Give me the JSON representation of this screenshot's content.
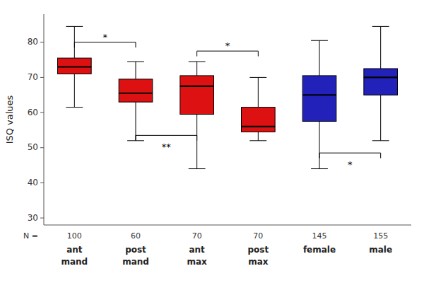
{
  "chart_data": {
    "type": "box",
    "ylabel": "ISQ values",
    "categories": [
      [
        "ant",
        "mand"
      ],
      [
        "post",
        "mand"
      ],
      [
        "ant",
        "max"
      ],
      [
        "post",
        "max"
      ],
      [
        "female"
      ],
      [
        "male"
      ]
    ],
    "n_label": "N =",
    "n": [
      100,
      60,
      70,
      70,
      145,
      155
    ],
    "colors": [
      "#dd1111",
      "#dd1111",
      "#dd1111",
      "#dd1111",
      "#2222bb",
      "#2222bb"
    ],
    "whisker_low": [
      61.5,
      52.0,
      44.0,
      52.0,
      44.0,
      52.0
    ],
    "q1": [
      71.0,
      63.0,
      59.5,
      54.5,
      57.5,
      65.0
    ],
    "median": [
      73.0,
      65.5,
      67.5,
      56.0,
      65.0,
      70.0
    ],
    "q3": [
      75.5,
      69.5,
      70.5,
      61.5,
      70.5,
      72.5
    ],
    "whisker_high": [
      84.5,
      74.5,
      74.5,
      70.0,
      80.5,
      84.5
    ],
    "significance": [
      {
        "from": 0,
        "to": 1,
        "y": 80,
        "drop": 1.5,
        "label": "*",
        "above": true
      },
      {
        "from": 1,
        "to": 2,
        "y": 53.5,
        "drop": 1.5,
        "label": "**",
        "above": false
      },
      {
        "from": 2,
        "to": 3,
        "y": 77.5,
        "drop": 1.5,
        "label": "*",
        "above": true
      },
      {
        "from": 4,
        "to": 5,
        "y": 48.5,
        "drop": 1.5,
        "label": "*",
        "above": false
      }
    ],
    "ylim": [
      28,
      88
    ],
    "yticks": [
      30,
      40,
      50,
      60,
      70,
      80
    ],
    "grid": false
  }
}
